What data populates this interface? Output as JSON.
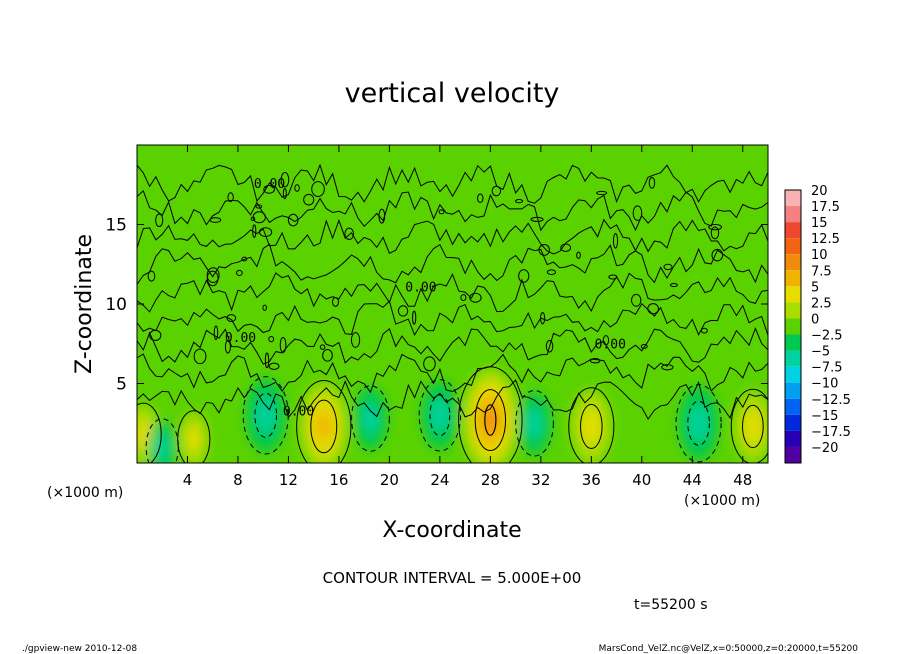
{
  "chart_data": {
    "type": "heatmap",
    "title": "vertical velocity",
    "xlabel": "X-coordinate",
    "ylabel": "Z-coordinate",
    "x_unit_left": "(×1000 m)",
    "x_unit_right": "(×1000 m)",
    "xlim": [
      0,
      50
    ],
    "ylim": [
      0,
      20
    ],
    "x_ticks": [
      "4",
      "8",
      "12",
      "16",
      "20",
      "24",
      "28",
      "32",
      "36",
      "40",
      "44",
      "48"
    ],
    "x_tick_values": [
      4,
      8,
      12,
      16,
      20,
      24,
      28,
      32,
      36,
      40,
      44,
      48
    ],
    "y_ticks": [
      "5",
      "10",
      "15"
    ],
    "y_tick_values": [
      5,
      10,
      15
    ],
    "contour_label": "0.00",
    "colorbar": {
      "labels": [
        "20",
        "17.5",
        "15",
        "12.5",
        "10",
        "7.5",
        "5",
        "2.5",
        "0",
        "−2.5",
        "−5",
        "−7.5",
        "−10",
        "−12.5",
        "−15",
        "−17.5",
        "−20"
      ],
      "levels": [
        20,
        17.5,
        15,
        12.5,
        10,
        7.5,
        5,
        2.5,
        0,
        -2.5,
        -5,
        -7.5,
        -10,
        -12.5,
        -15,
        -17.5,
        -20
      ],
      "colors": [
        "#f7b3b3",
        "#f48080",
        "#f04830",
        "#f06414",
        "#f08c0a",
        "#f0b400",
        "#e6dc00",
        "#aadc00",
        "#5ad200",
        "#00c850",
        "#00d2a0",
        "#00d2e6",
        "#00a0f0",
        "#0064f0",
        "#0028dc",
        "#2800b4",
        "#5000a0"
      ]
    },
    "features": [
      {
        "x": 14.8,
        "z": 2.3,
        "peak": 8.5,
        "sign": "up"
      },
      {
        "x": 28.0,
        "z": 2.7,
        "peak": 11.0,
        "sign": "up"
      },
      {
        "x": 36.0,
        "z": 2.3,
        "peak": 6.0,
        "sign": "up"
      },
      {
        "x": 48.8,
        "z": 2.3,
        "peak": 5.5,
        "sign": "up"
      },
      {
        "x": 0.5,
        "z": 1.8,
        "peak": 3.5,
        "sign": "up"
      },
      {
        "x": 4.5,
        "z": 1.5,
        "peak": 2.5,
        "sign": "up"
      },
      {
        "x": 10.2,
        "z": 3.0,
        "peak": -6.0,
        "sign": "down"
      },
      {
        "x": 18.5,
        "z": 2.8,
        "peak": -4.0,
        "sign": "down"
      },
      {
        "x": 24.0,
        "z": 3.0,
        "peak": -5.0,
        "sign": "down"
      },
      {
        "x": 31.5,
        "z": 2.5,
        "peak": -4.0,
        "sign": "down"
      },
      {
        "x": 44.5,
        "z": 2.5,
        "peak": -6.0,
        "sign": "down"
      },
      {
        "x": 2.0,
        "z": 1.0,
        "peak": -2.5,
        "sign": "down"
      }
    ]
  },
  "contour_interval": "CONTOUR INTERVAL = 5.000E+00",
  "time_label": "t=55200 s",
  "footer_left": "./gpview-new   2010-12-08",
  "footer_right": "MarsCond_VelZ.nc@VelZ,x=0:50000,z=0:20000,t=55200"
}
